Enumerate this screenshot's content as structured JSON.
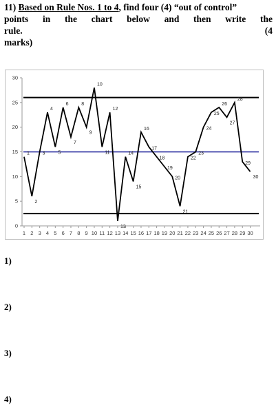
{
  "question": {
    "number": "11)",
    "rule_ref": "Based on Rule Nos. 1 to 4",
    "line1_rest": ", find four (4) “out of control”",
    "line2_words": [
      "points",
      "in",
      "the",
      "chart",
      "below",
      "and",
      "then",
      "write",
      "the"
    ],
    "line3_left": "rule.",
    "line3_right": "(4",
    "line4": "marks)"
  },
  "chart_data": {
    "type": "line",
    "x": [
      1,
      2,
      3,
      4,
      5,
      6,
      7,
      8,
      9,
      10,
      11,
      12,
      13,
      14,
      15,
      16,
      17,
      18,
      19,
      20,
      21,
      22,
      23,
      24,
      25,
      26,
      27,
      28,
      29,
      30
    ],
    "values": [
      14,
      6,
      15,
      23,
      16,
      24,
      18,
      24,
      20,
      28,
      16,
      23,
      1,
      14,
      9,
      19,
      16,
      14,
      12,
      10,
      4,
      14,
      15,
      20,
      23,
      24,
      22,
      25,
      13,
      11
    ],
    "point_labels": [
      "1",
      "2",
      "3",
      "4",
      "5",
      "6",
      "7",
      "8",
      "9",
      "10",
      "11",
      "12",
      "13",
      "14",
      "15",
      "16",
      "17",
      "18",
      "19",
      "20",
      "21",
      "22",
      "23",
      "24",
      "25",
      "26",
      "27",
      "28",
      "29",
      "30"
    ],
    "ylim": [
      0,
      30
    ],
    "yticks": [
      "0",
      "5",
      "10",
      "15",
      "20",
      "25",
      "30"
    ],
    "xticks": [
      "1",
      "2",
      "3",
      "4",
      "5",
      "6",
      "7",
      "8",
      "9",
      "10",
      "11",
      "12",
      "13",
      "14",
      "15",
      "16",
      "17",
      "18",
      "19",
      "20",
      "21",
      "22",
      "23",
      "24",
      "25",
      "26",
      "27",
      "28",
      "29",
      "30"
    ],
    "control_lines": {
      "ucl": 26,
      "center": 15,
      "lcl": 2.5
    },
    "colors": {
      "data_line": "#000000",
      "center_line": "#3b3fa8",
      "control_line": "#000000"
    },
    "grid": false
  },
  "answers": [
    "1)",
    "2)",
    "3)",
    "4)"
  ]
}
